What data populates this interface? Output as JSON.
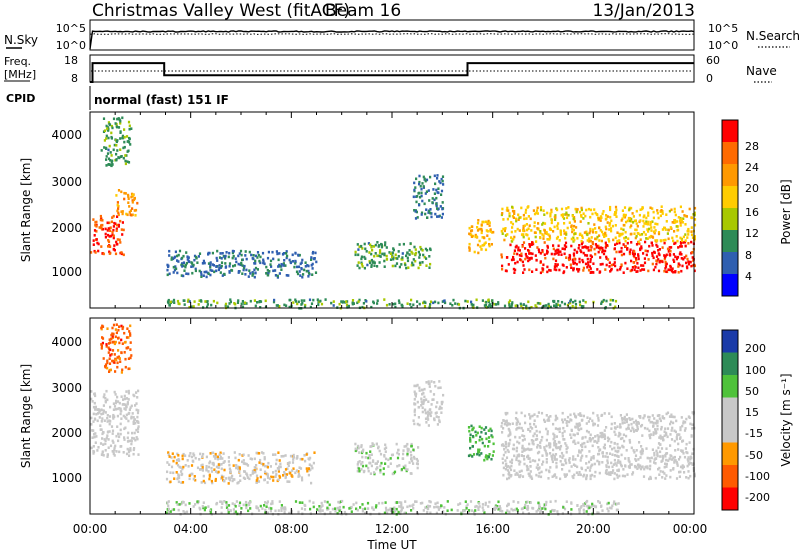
{
  "header": {
    "title": "Christmas Valley West (fitACF)",
    "beam": "Beam 16",
    "date": "13/Jan/2013"
  },
  "noise_panel": {
    "left_label": "N.Sky",
    "right_label": "N.Search",
    "left_ticks": [
      "10^5",
      "10^0"
    ],
    "right_ticks": [
      "10^5",
      "10^0"
    ]
  },
  "freq_panel": {
    "left_label_1": "Freq.",
    "left_label_2": "[MHz]",
    "right_label": "Nave",
    "left_ticks": [
      "18",
      "8"
    ],
    "right_ticks": [
      "60",
      "0"
    ]
  },
  "cpid": {
    "label": "CPID",
    "value": "normal (fast) 151 IF"
  },
  "x_axis": {
    "title": "Time UT",
    "ticks": [
      "00:00",
      "04:00",
      "08:00",
      "12:00",
      "16:00",
      "20:00",
      "00:00"
    ]
  },
  "power_panel": {
    "ylabel": "Slant Range [km]",
    "yticks": [
      "4000",
      "3000",
      "2000",
      "1000"
    ],
    "colorbar_title": "Power [dB]",
    "colorbar_ticks": [
      "28",
      "24",
      "20",
      "16",
      "12",
      "8",
      "4"
    ]
  },
  "velocity_panel": {
    "ylabel": "Slant Range [km]",
    "yticks": [
      "4000",
      "3000",
      "2000",
      "1000"
    ],
    "colorbar_title": "Velocity [m s⁻¹]",
    "colorbar_ticks": [
      "200",
      "100",
      "50",
      "15",
      "-15",
      "-50",
      "-100",
      "-200"
    ]
  },
  "colors": {
    "power_scale": [
      "#ff0000",
      "#ff6a00",
      "#ff9900",
      "#ffcc00",
      "#a8c800",
      "#2e8b57",
      "#2f5fb0",
      "#0000ff"
    ],
    "velocity_scale": [
      "#1a3aa8",
      "#2e8b57",
      "#4fc23a",
      "#c8c8c8",
      "#c8c8c8",
      "#ff9900",
      "#ff5a00",
      "#ff0000"
    ]
  },
  "chart_data": [
    {
      "type": "line",
      "name": "noise",
      "x": [
        0,
        24
      ],
      "xlim": [
        0,
        24
      ],
      "y_scale": "log",
      "ylim": [
        1,
        100000
      ]
    },
    {
      "type": "line",
      "name": "frequency",
      "x": [
        0,
        0.1,
        0.1,
        2.95,
        2.95,
        15.0,
        15.0,
        24
      ],
      "series": [
        {
          "values": [
            8,
            8,
            15,
            15,
            10.5,
            10.5,
            15,
            15
          ]
        }
      ],
      "xlim": [
        0,
        24
      ],
      "ylim": [
        8,
        18
      ]
    },
    {
      "type": "heatmap",
      "name": "power",
      "xlabel": "Time UT",
      "ylabel": "Slant Range [km]",
      "xlim": [
        0,
        24
      ],
      "ylim": [
        180,
        4600
      ],
      "zlabel": "Power [dB]",
      "zlim": [
        0,
        30
      ],
      "regions": [
        {
          "x": [
            0.0,
            1.3
          ],
          "y": [
            1400,
            2300
          ],
          "z": 26
        },
        {
          "x": [
            1.0,
            1.9
          ],
          "y": [
            2300,
            2900
          ],
          "z": 21
        },
        {
          "x": [
            0.4,
            1.6
          ],
          "y": [
            3400,
            4500
          ],
          "z": 10
        },
        {
          "x": [
            3.0,
            9.0
          ],
          "y": [
            900,
            1500
          ],
          "z": 7
        },
        {
          "x": [
            10.5,
            13.5
          ],
          "y": [
            1100,
            1700
          ],
          "z": 10
        },
        {
          "x": [
            12.8,
            14.0
          ],
          "y": [
            2200,
            3200
          ],
          "z": 7
        },
        {
          "x": [
            15.0,
            16.0
          ],
          "y": [
            1400,
            2200
          ],
          "z": 18
        },
        {
          "x": [
            16.3,
            24.0
          ],
          "y": [
            1000,
            1700
          ],
          "z": 28
        },
        {
          "x": [
            16.3,
            24.0
          ],
          "y": [
            1700,
            2500
          ],
          "z": 17
        },
        {
          "x": [
            3.0,
            21.0
          ],
          "y": [
            200,
            400
          ],
          "z": 10
        }
      ]
    },
    {
      "type": "heatmap",
      "name": "velocity",
      "xlabel": "Time UT",
      "ylabel": "Slant Range [km]",
      "xlim": [
        0,
        24
      ],
      "ylim": [
        180,
        4600
      ],
      "zlabel": "Velocity [m s⁻¹]",
      "zlim": [
        -250,
        250
      ],
      "regions": [
        {
          "x": [
            0.0,
            1.9
          ],
          "y": [
            1500,
            3000
          ],
          "z": 0
        },
        {
          "x": [
            0.4,
            1.6
          ],
          "y": [
            3400,
            4500
          ],
          "z": -150
        },
        {
          "x": [
            3.0,
            9.0
          ],
          "y": [
            900,
            1600
          ],
          "z": -40
        },
        {
          "x": [
            10.5,
            13.0
          ],
          "y": [
            1100,
            1800
          ],
          "z": 40
        },
        {
          "x": [
            12.8,
            14.0
          ],
          "y": [
            2200,
            3200
          ],
          "z": 10
        },
        {
          "x": [
            15.0,
            16.0
          ],
          "y": [
            1400,
            2200
          ],
          "z": 120
        },
        {
          "x": [
            16.3,
            24.0
          ],
          "y": [
            1000,
            2500
          ],
          "z": 0
        },
        {
          "x": [
            3.0,
            21.0
          ],
          "y": [
            200,
            500
          ],
          "z": 40
        }
      ]
    }
  ]
}
